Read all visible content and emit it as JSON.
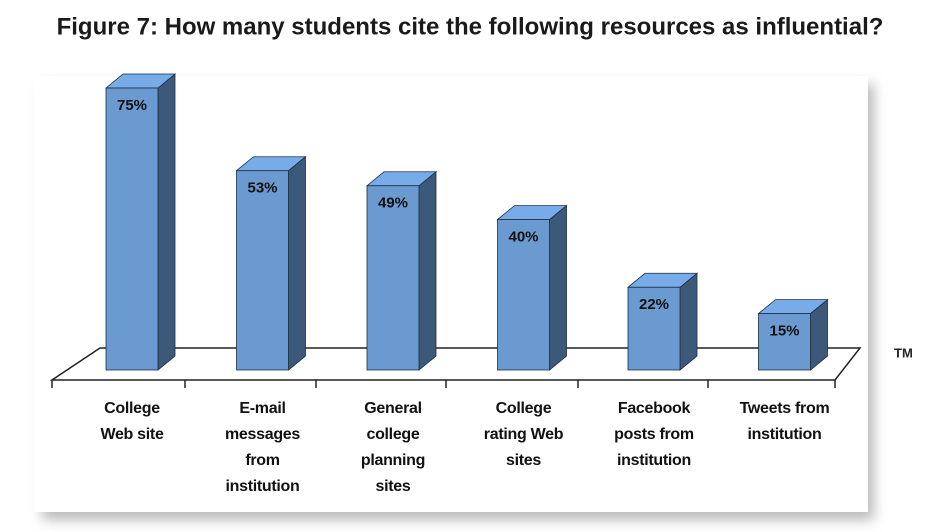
{
  "chart_data": {
    "type": "bar3d",
    "title": "Figure 7: How many students cite the following resources as influential?",
    "categories": [
      "College Web site",
      "E-mail messages from institution",
      "General college planning sites",
      "College rating Web sites",
      "Facebook posts from institution",
      "Tweets from institution"
    ],
    "values": [
      75,
      53,
      49,
      40,
      22,
      15
    ],
    "value_labels": [
      "75%",
      "53%",
      "49%",
      "40%",
      "22%",
      "15%"
    ],
    "color": "#6a9ad0",
    "trademark": "TM"
  }
}
